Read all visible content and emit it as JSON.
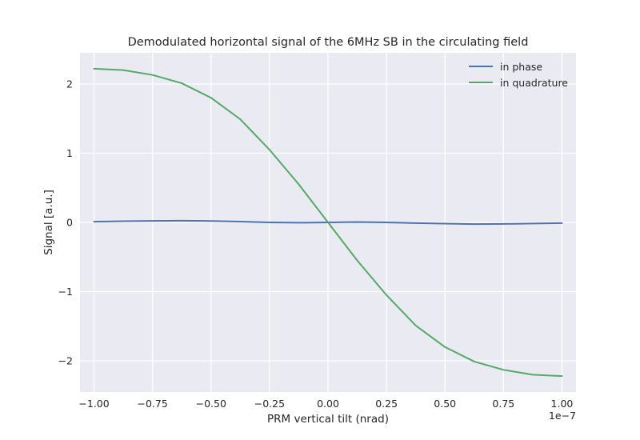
{
  "chart_data": {
    "type": "line",
    "title": "Demodulated horizontal signal of the 6MHz SB in the circulating field",
    "xlabel": "PRM vertical tilt (nrad)",
    "ylabel": "Signal [a.u.]",
    "x_offset_text": "1e−7",
    "xlim": [
      -1.06e-07,
      1.06e-07
    ],
    "ylim": [
      -2.45,
      2.45
    ],
    "x_ticks": [
      -1e-07,
      -7.5e-08,
      -5e-08,
      -2.5e-08,
      0,
      2.5e-08,
      5e-08,
      7.5e-08,
      1e-07
    ],
    "x_tick_labels": [
      "−1.00",
      "−0.75",
      "−0.50",
      "−0.25",
      "0.00",
      "0.25",
      "0.50",
      "0.75",
      "1.00"
    ],
    "y_ticks": [
      -2,
      -1,
      0,
      1,
      2
    ],
    "y_tick_labels": [
      "−2",
      "−1",
      "0",
      "1",
      "2"
    ],
    "grid": true,
    "legend_position": "top-right",
    "x": [
      -1e-07,
      -8.75e-08,
      -7.5e-08,
      -6.25e-08,
      -5e-08,
      -3.75e-08,
      -2.5e-08,
      -1.25e-08,
      0,
      1.25e-08,
      2.5e-08,
      3.75e-08,
      5e-08,
      6.25e-08,
      7.5e-08,
      8.75e-08,
      1e-07
    ],
    "series": [
      {
        "name": "in phase",
        "color": "#4c72b0",
        "values": [
          0.01,
          0.018,
          0.022,
          0.024,
          0.02,
          0.012,
          0.0,
          -0.005,
          0.0,
          0.006,
          0.0,
          -0.01,
          -0.018,
          -0.024,
          -0.022,
          -0.016,
          -0.01
        ]
      },
      {
        "name": "in quadrature",
        "color": "#55a868",
        "values": [
          2.22,
          2.2,
          2.13,
          2.01,
          1.8,
          1.49,
          1.05,
          0.55,
          0.0,
          -0.55,
          -1.05,
          -1.49,
          -1.8,
          -2.01,
          -2.13,
          -2.2,
          -2.22
        ]
      }
    ]
  },
  "style": {
    "plot_background": "#eaeaf2",
    "grid_color": "#ffffff",
    "text_color": "#262626"
  }
}
